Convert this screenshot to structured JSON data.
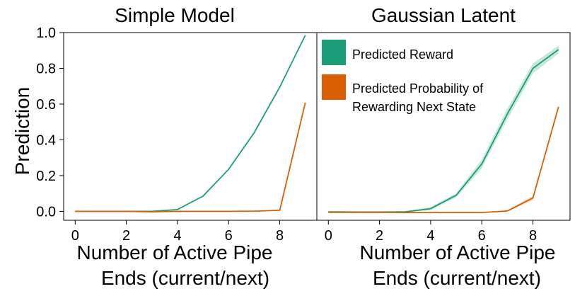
{
  "chart_data": [
    {
      "type": "line",
      "title": "Simple Model",
      "xlabel_line1": "Number of Active Pipe",
      "xlabel_line2": "Ends (current/next)",
      "ylabel": "Prediction",
      "xlim": [
        -0.45,
        9.45
      ],
      "ylim": [
        -0.05,
        1.0
      ],
      "xticks": [
        "0",
        "2",
        "4",
        "6",
        "8"
      ],
      "yticks": [
        "0.0",
        "0.2",
        "0.4",
        "0.6",
        "0.8",
        "1.0"
      ],
      "x": [
        0,
        1,
        2,
        3,
        4,
        5,
        6,
        7,
        8,
        9
      ],
      "series": [
        {
          "values": [
            0.0,
            0.0,
            0.0,
            0.0,
            0.01,
            0.085,
            0.235,
            0.44,
            0.695,
            0.985
          ],
          "color": "#1b9e77"
        },
        {
          "values": [
            0.0,
            0.0,
            0.0,
            -0.003,
            0.0,
            0.0,
            0.0,
            0.001,
            0.006,
            0.608
          ],
          "color": "#d95f02"
        }
      ]
    },
    {
      "type": "line",
      "title": "Gaussian Latent",
      "xlabel_line1": "Number of Active Pipe",
      "xlabel_line2": "Ends (current/next)",
      "xlim": [
        -0.45,
        9.45
      ],
      "ylim": [
        -0.05,
        1.0
      ],
      "xticks": [
        "0",
        "2",
        "4",
        "6",
        "8"
      ],
      "x": [
        0,
        1,
        2,
        3,
        4,
        5,
        6,
        7,
        8,
        9
      ],
      "legend_position": "top-left",
      "series": [
        {
          "name": "Predicted Reward",
          "values": [
            -0.003,
            -0.004,
            -0.004,
            -0.003,
            0.015,
            0.09,
            0.265,
            0.545,
            0.8,
            0.905
          ],
          "band": [
            0.004,
            0.004,
            0.004,
            0.004,
            0.008,
            0.012,
            0.025,
            0.03,
            0.028,
            0.022
          ],
          "color": "#1b9e77"
        },
        {
          "name": "Predicted Probability of Rewarding Next State",
          "name_line1": "Predicted Probability of",
          "name_line2": "Rewarding Next State",
          "values": [
            -0.006,
            -0.006,
            -0.006,
            -0.007,
            -0.007,
            -0.007,
            -0.007,
            0.002,
            0.075,
            0.585
          ],
          "band": [
            0.002,
            0.002,
            0.002,
            0.002,
            0.002,
            0.002,
            0.002,
            0.004,
            0.012,
            0.006
          ],
          "color": "#d95f02"
        }
      ]
    }
  ]
}
